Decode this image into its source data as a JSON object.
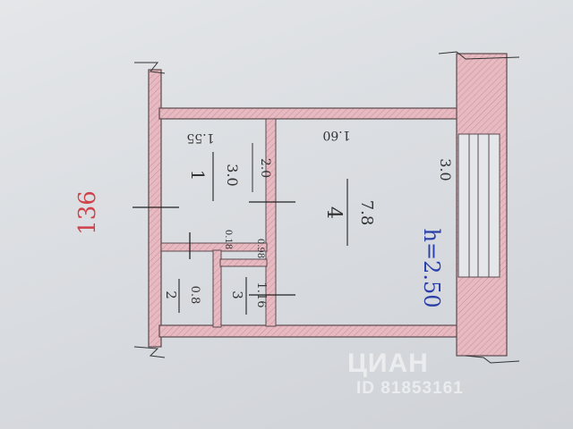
{
  "plan": {
    "building_number": "136",
    "ceiling_height": "h=2.50",
    "rooms": [
      {
        "number": "1",
        "area": "3.0",
        "width": "1.55",
        "side": "2.0"
      },
      {
        "number": "4",
        "area": "7.8",
        "width": "1.60",
        "side": "3.0"
      },
      {
        "number": "2",
        "area": "0.8"
      },
      {
        "number": "3",
        "area": "1.16"
      }
    ],
    "small_dims": [
      "0.18",
      "0.98"
    ]
  },
  "colors": {
    "wall_fill": "#e7b9c1",
    "wall_stroke": "#5a4a4e",
    "red_ink": "#d0424a",
    "blue_ink": "#2b3fa8"
  },
  "watermark": {
    "logo_text": "ЦИАН",
    "id_text": "ID 81853161"
  }
}
